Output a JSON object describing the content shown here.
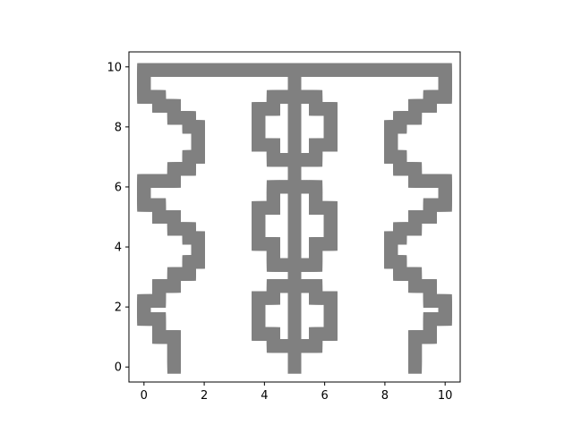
{
  "chart_data": {
    "type": "scatter",
    "title": "",
    "xlabel": "",
    "ylabel": "",
    "xlim": [
      -0.5,
      10.5
    ],
    "ylim": [
      -0.5,
      10.5
    ],
    "xticks": [
      0,
      2,
      4,
      6,
      8,
      10
    ],
    "yticks": [
      0,
      2,
      4,
      6,
      8,
      10
    ],
    "xtick_labels": [
      "0",
      "2",
      "4",
      "6",
      "8",
      "10"
    ],
    "ytick_labels": [
      "0",
      "2",
      "4",
      "6",
      "8",
      "10"
    ],
    "grid": false,
    "legend": null,
    "marker": "square",
    "color": "#808080",
    "segments": [
      {
        "name": "top-bar",
        "points": [
          [
            0,
            9.9
          ],
          [
            10,
            9.9
          ]
        ]
      },
      {
        "name": "left-zigzag",
        "points": [
          [
            1,
            0
          ],
          [
            1,
            1
          ],
          [
            0.5,
            1
          ],
          [
            0.5,
            1.6
          ],
          [
            0,
            1.6
          ],
          [
            0,
            2.2
          ],
          [
            0.5,
            2.2
          ],
          [
            0.5,
            2.7
          ],
          [
            1,
            2.7
          ],
          [
            1,
            3.1
          ],
          [
            1.5,
            3.1
          ],
          [
            1.5,
            3.5
          ],
          [
            1.8,
            3.5
          ],
          [
            1.8,
            4.3
          ],
          [
            1.5,
            4.3
          ],
          [
            1.5,
            4.6
          ],
          [
            1,
            4.6
          ],
          [
            1,
            5
          ],
          [
            0.5,
            5
          ],
          [
            0.5,
            5.4
          ],
          [
            0,
            5.4
          ],
          [
            0,
            6.2
          ],
          [
            1,
            6.2
          ],
          [
            1,
            6.6
          ],
          [
            1.5,
            6.6
          ],
          [
            1.5,
            7
          ],
          [
            1.8,
            7
          ],
          [
            1.8,
            8
          ],
          [
            1.5,
            8
          ],
          [
            1.5,
            8.3
          ],
          [
            1,
            8.3
          ],
          [
            1,
            8.7
          ],
          [
            0.5,
            8.7
          ],
          [
            0.5,
            9
          ],
          [
            0,
            9
          ],
          [
            0,
            9.9
          ]
        ]
      },
      {
        "name": "right-zigzag",
        "points": [
          [
            9,
            0
          ],
          [
            9,
            1
          ],
          [
            9.5,
            1
          ],
          [
            9.5,
            1.6
          ],
          [
            10,
            1.6
          ],
          [
            10,
            2.2
          ],
          [
            9.5,
            2.2
          ],
          [
            9.5,
            2.7
          ],
          [
            9,
            2.7
          ],
          [
            9,
            3.1
          ],
          [
            8.5,
            3.1
          ],
          [
            8.5,
            3.5
          ],
          [
            8.2,
            3.5
          ],
          [
            8.2,
            4.3
          ],
          [
            8.5,
            4.3
          ],
          [
            8.5,
            4.6
          ],
          [
            9,
            4.6
          ],
          [
            9,
            5
          ],
          [
            9.5,
            5
          ],
          [
            9.5,
            5.4
          ],
          [
            10,
            5.4
          ],
          [
            10,
            6.2
          ],
          [
            9,
            6.2
          ],
          [
            9,
            6.6
          ],
          [
            8.5,
            6.6
          ],
          [
            8.5,
            7
          ],
          [
            8.2,
            7
          ],
          [
            8.2,
            8
          ],
          [
            8.5,
            8
          ],
          [
            8.5,
            8.3
          ],
          [
            9,
            8.3
          ],
          [
            9,
            8.7
          ],
          [
            9.5,
            8.7
          ],
          [
            9.5,
            9
          ],
          [
            10,
            9
          ],
          [
            10,
            9.9
          ]
        ]
      },
      {
        "name": "center-stem",
        "points": [
          [
            5,
            0
          ],
          [
            5,
            9.9
          ]
        ]
      },
      {
        "name": "lower-loop",
        "points": [
          [
            5,
            2.7
          ],
          [
            4.3,
            2.7
          ],
          [
            4.3,
            2.3
          ],
          [
            3.8,
            2.3
          ],
          [
            3.8,
            1.1
          ],
          [
            4.3,
            1.1
          ],
          [
            4.3,
            0.7
          ],
          [
            5.7,
            0.7
          ],
          [
            5.7,
            1.1
          ],
          [
            6.2,
            1.1
          ],
          [
            6.2,
            2.3
          ],
          [
            5.7,
            2.3
          ],
          [
            5.7,
            2.7
          ],
          [
            5,
            2.7
          ]
        ]
      },
      {
        "name": "middle-loop",
        "points": [
          [
            5,
            6
          ],
          [
            4.3,
            6
          ],
          [
            4.3,
            5.3
          ],
          [
            3.8,
            5.3
          ],
          [
            3.8,
            4.1
          ],
          [
            4.3,
            4.1
          ],
          [
            4.3,
            3.4
          ],
          [
            5.7,
            3.4
          ],
          [
            5.7,
            4.1
          ],
          [
            6.2,
            4.1
          ],
          [
            6.2,
            5.3
          ],
          [
            5.7,
            5.3
          ],
          [
            5.7,
            6
          ],
          [
            5,
            6
          ]
        ]
      },
      {
        "name": "upper-loop",
        "points": [
          [
            5,
            9
          ],
          [
            4.3,
            9
          ],
          [
            4.3,
            8.6
          ],
          [
            3.8,
            8.6
          ],
          [
            3.8,
            7.4
          ],
          [
            4.3,
            7.4
          ],
          [
            4.3,
            6.9
          ],
          [
            5.7,
            6.9
          ],
          [
            5.7,
            7.4
          ],
          [
            6.2,
            7.4
          ],
          [
            6.2,
            8.6
          ],
          [
            5.7,
            8.6
          ],
          [
            5.7,
            9
          ],
          [
            5,
            9
          ]
        ]
      }
    ]
  }
}
